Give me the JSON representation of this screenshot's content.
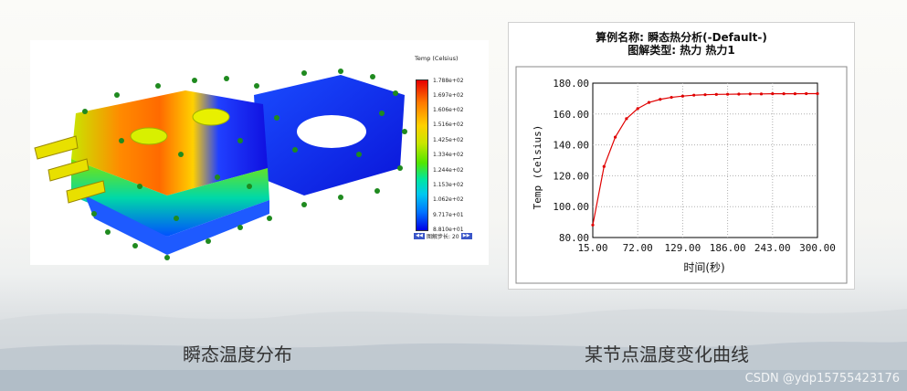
{
  "left_panel": {
    "legend_title": "Temp (Celsius)",
    "legend_ticks": [
      "1.788e+02",
      "1.697e+02",
      "1.606e+02",
      "1.516e+02",
      "1.425e+02",
      "1.334e+02",
      "1.244e+02",
      "1.153e+02",
      "1.062e+02",
      "9.717e+01",
      "8.810e+01"
    ],
    "step_label": "图解步长: 20",
    "caption": "瞬态温度分布"
  },
  "right_panel": {
    "caption": "某节点温度变化曲线"
  },
  "chart_data": {
    "type": "line",
    "title": "算例名称: 瞬态热分析(-Default-)",
    "subtitle": "图解类型: 热力 热力1",
    "xlabel": "时间(秒)",
    "ylabel": "Temp (Celsius)",
    "xlim": [
      15,
      300
    ],
    "ylim": [
      80,
      180
    ],
    "x_tick_labels": [
      "15.00",
      "72.00",
      "129.00",
      "186.00",
      "243.00",
      "300.00"
    ],
    "x_ticks": [
      15,
      72,
      129,
      186,
      243,
      300
    ],
    "y_tick_labels": [
      "80.00",
      "100.00",
      "120.00",
      "140.00",
      "160.00",
      "180.00"
    ],
    "y_ticks": [
      80,
      100,
      120,
      140,
      160,
      180
    ],
    "grid": true,
    "series": [
      {
        "color": "#e00000",
        "x": [
          15,
          29.25,
          43.5,
          57.75,
          72,
          86.25,
          100.5,
          114.75,
          129,
          143.25,
          157.5,
          171.75,
          186,
          200.25,
          214.5,
          228.75,
          243,
          257.25,
          271.5,
          285.75,
          300
        ],
        "y": [
          88.1,
          126,
          145,
          157,
          163.5,
          167.5,
          169.5,
          170.8,
          171.6,
          172.2,
          172.5,
          172.7,
          172.8,
          172.9,
          173,
          173,
          173.1,
          173.1,
          173.1,
          173.2,
          173.2
        ]
      }
    ]
  },
  "watermark": "CSDN @ydp15755423176"
}
